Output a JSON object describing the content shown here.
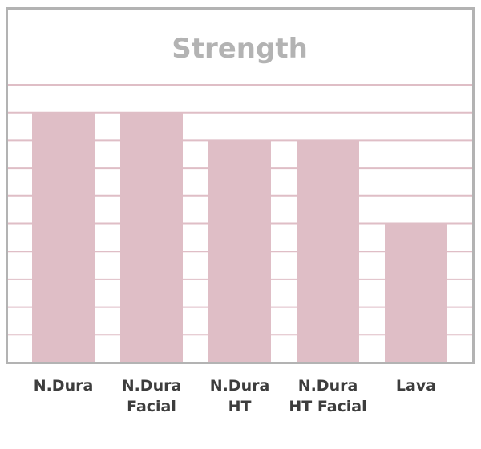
{
  "chart_data": {
    "type": "bar",
    "title": "Strength",
    "categories": [
      [
        "N.Dura"
      ],
      [
        "N.Dura",
        "Facial"
      ],
      [
        "N.Dura",
        "HT"
      ],
      [
        "N.Dura",
        "HT Facial"
      ],
      [
        "Lava"
      ]
    ],
    "values": [
      9,
      9,
      8,
      8,
      5
    ],
    "ylim": [
      0,
      10
    ],
    "grid": true,
    "legend": "none",
    "xlabel": "",
    "ylabel": ""
  },
  "colors": {
    "bar": "#dfbec6",
    "grid": "#dfbec6",
    "frame": "#b3b3b3",
    "title": "#b3b3b3",
    "label": "#3d3d3d",
    "background": "#ffffff"
  }
}
